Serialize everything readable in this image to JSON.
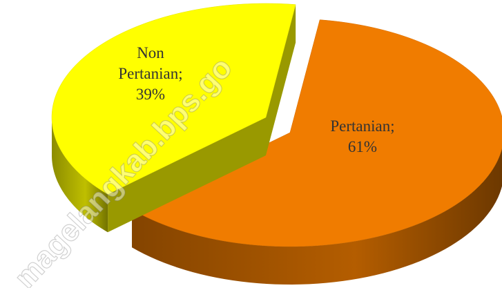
{
  "chart_data": {
    "type": "pie",
    "categories": [
      "Pertanian",
      "Non Pertanian"
    ],
    "values": [
      61,
      39
    ],
    "value_labels": [
      "61%",
      "39%"
    ],
    "label_separator": ";",
    "colors": [
      "#f07c00",
      "#ffff00"
    ],
    "watermark": "magelangkab.bps.go"
  }
}
